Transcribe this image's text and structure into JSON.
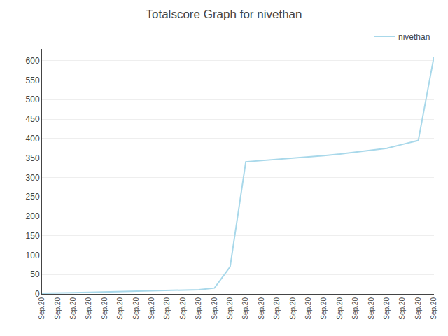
{
  "chart_data": {
    "type": "line",
    "title": "Totalscore Graph for nivethan",
    "x": [
      0,
      1,
      2,
      3,
      4,
      5,
      6,
      7,
      8,
      9,
      10,
      11,
      12,
      13,
      14,
      15,
      16,
      17,
      18,
      19,
      20,
      21,
      22,
      23,
      24,
      25
    ],
    "series": [
      {
        "name": "nivethan",
        "color": "#a8d8ea",
        "values": [
          2,
          2,
          3,
          4,
          5,
          6,
          7,
          8,
          9,
          10,
          11,
          15,
          70,
          340,
          343,
          346,
          350,
          353,
          356,
          360,
          365,
          370,
          375,
          385,
          395,
          610
        ]
      }
    ],
    "xlim": [
      0,
      25
    ],
    "xticks": [
      {
        "value": 0,
        "label": "Sep.20"
      },
      {
        "value": 1,
        "label": "Sep.20"
      },
      {
        "value": 2,
        "label": "Sep.20"
      },
      {
        "value": 3,
        "label": "Sep.20"
      },
      {
        "value": 4,
        "label": "Sep.20"
      },
      {
        "value": 5,
        "label": "Sep.20"
      },
      {
        "value": 6,
        "label": "Sep.20"
      },
      {
        "value": 7,
        "label": "Sep.20"
      },
      {
        "value": 8,
        "label": "Sep.20"
      },
      {
        "value": 9,
        "label": "Sep.20"
      },
      {
        "value": 10,
        "label": "Sep.20"
      },
      {
        "value": 11,
        "label": "Sep.20"
      },
      {
        "value": 12,
        "label": "Sep.20"
      },
      {
        "value": 13,
        "label": "Sep.20"
      },
      {
        "value": 14,
        "label": "Sep.20"
      },
      {
        "value": 15,
        "label": "Sep.20"
      },
      {
        "value": 16,
        "label": "Sep.20"
      },
      {
        "value": 17,
        "label": "Sep.20"
      },
      {
        "value": 18,
        "label": "Sep.20"
      },
      {
        "value": 19,
        "label": "Sep.20"
      },
      {
        "value": 20,
        "label": "Sep.20"
      },
      {
        "value": 21,
        "label": "Sep.20"
      },
      {
        "value": 22,
        "label": "Sep.20"
      },
      {
        "value": 23,
        "label": "Sep.20"
      },
      {
        "value": 24,
        "label": "Sep.20"
      },
      {
        "value": 25,
        "label": "Sep.20"
      }
    ],
    "ylim": [
      0,
      630
    ],
    "yticks": [
      0,
      50,
      100,
      150,
      200,
      250,
      300,
      350,
      400,
      450,
      500,
      550,
      600
    ],
    "grid": "y",
    "legend": "upper right"
  }
}
